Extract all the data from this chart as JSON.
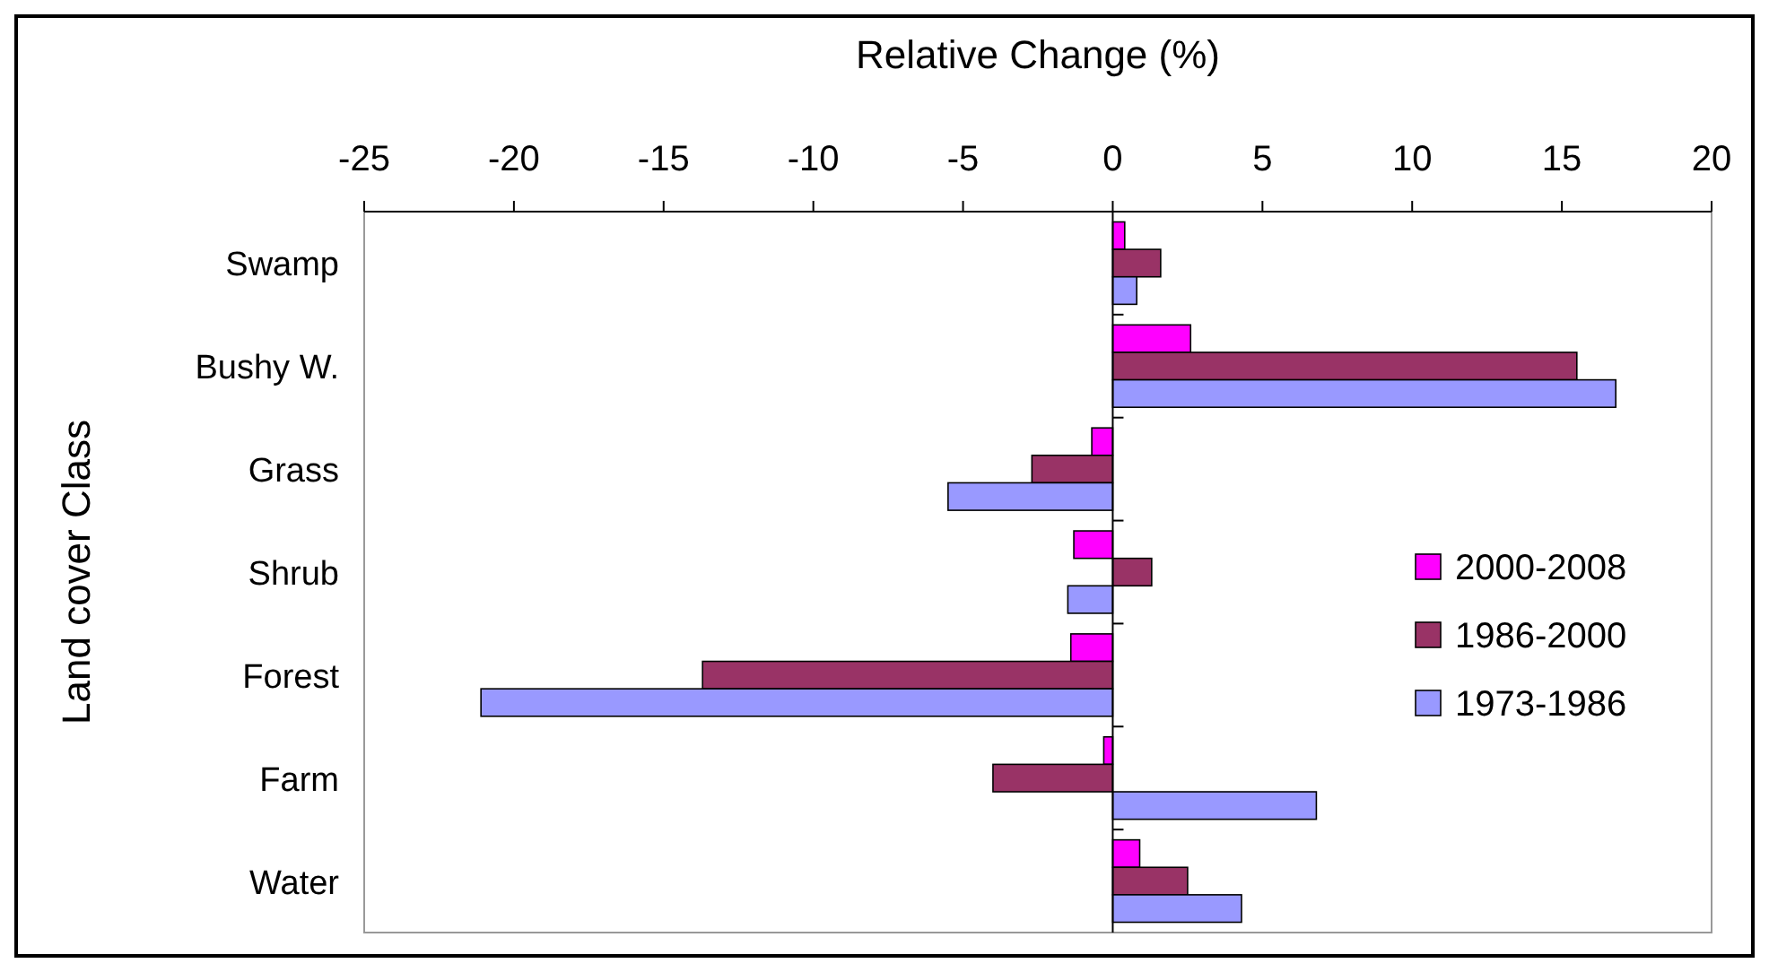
{
  "chart_data": {
    "type": "bar",
    "orientation": "horizontal",
    "xlabel": "Relative Change (%)",
    "ylabel": "Land cover Class",
    "categories": [
      "Swamp",
      "Bushy W.",
      "Grass",
      "Shrub",
      "Forest",
      "Farm",
      "Water"
    ],
    "series": [
      {
        "name": "2000-2008",
        "color": "#ff00ff",
        "values": [
          0.4,
          2.6,
          -0.7,
          -1.3,
          -1.4,
          -0.3,
          0.9
        ]
      },
      {
        "name": "1986-2000",
        "color": "#993366",
        "values": [
          1.6,
          15.5,
          -2.7,
          1.3,
          -13.7,
          -4.0,
          2.5
        ]
      },
      {
        "name": "1973-1986",
        "color": "#9999ff",
        "values": [
          0.8,
          16.8,
          -5.5,
          -1.5,
          -21.1,
          6.8,
          4.3
        ]
      }
    ],
    "xlim": [
      -25,
      20
    ],
    "xticks": [
      -25,
      -20,
      -15,
      -10,
      -5,
      0,
      5,
      10,
      15,
      20
    ],
    "legend": "right"
  }
}
